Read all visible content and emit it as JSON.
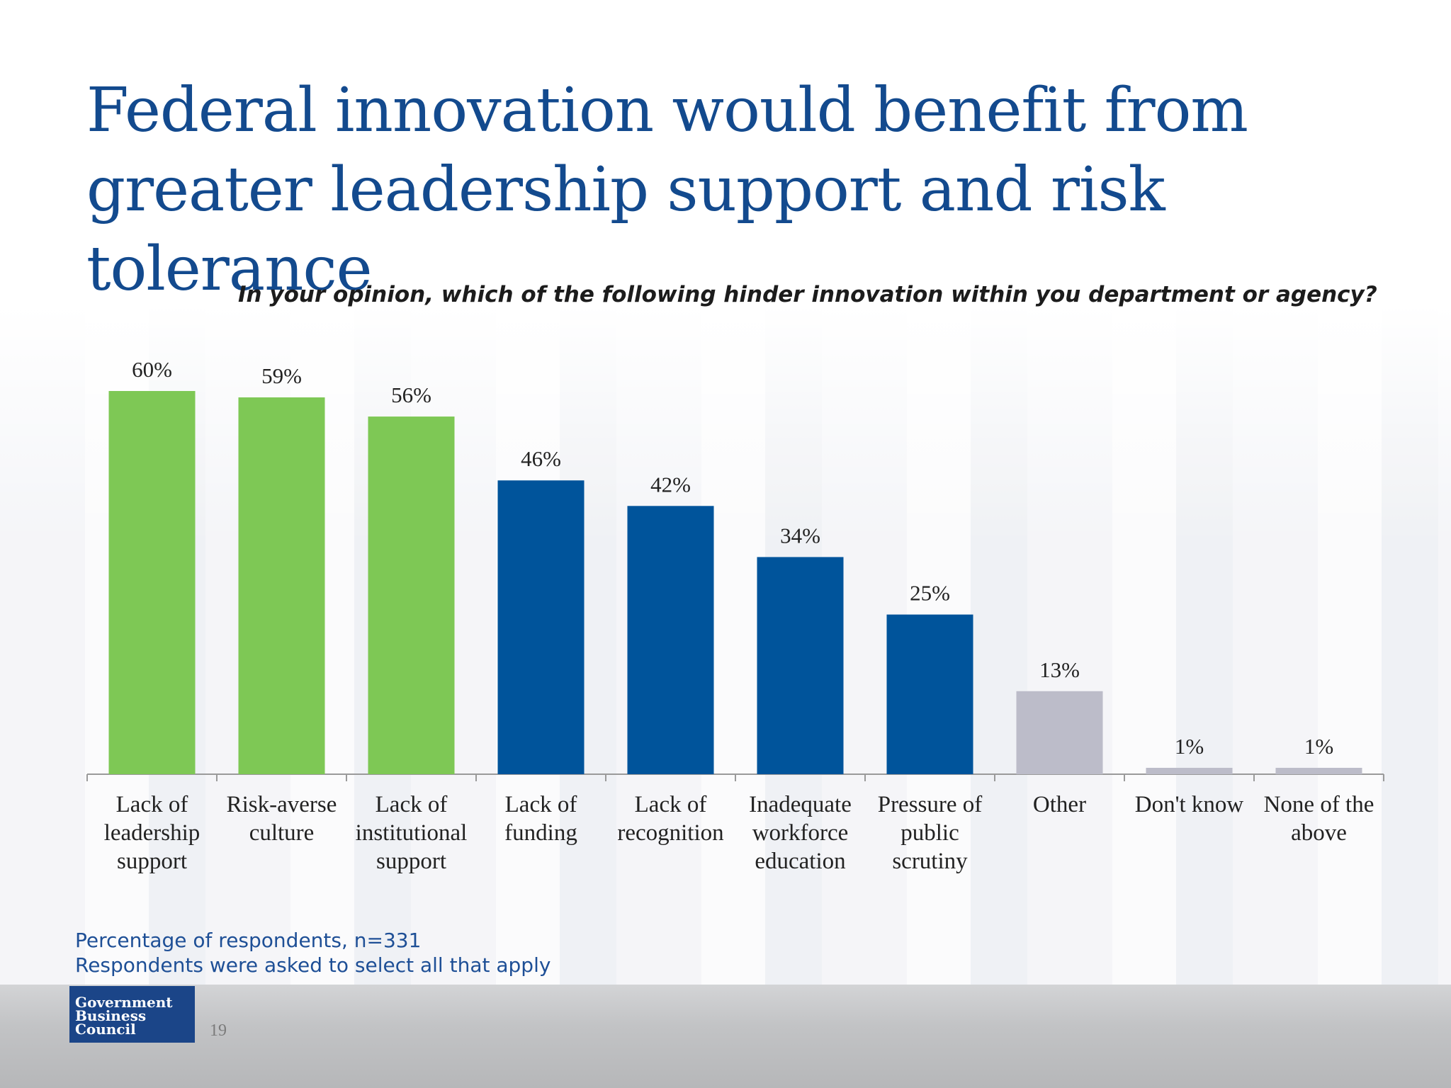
{
  "title_lines": [
    "Federal innovation would benefit from",
    "greater leadership support and risk tolerance"
  ],
  "subtitle": "In your opinion, which of the following hinder innovation within you department or agency?",
  "chart_data": {
    "type": "bar",
    "categories": [
      [
        "Lack of",
        "leadership",
        "support"
      ],
      [
        "Risk-averse",
        "culture"
      ],
      [
        "Lack of",
        "institutional",
        "support"
      ],
      [
        "Lack of",
        "funding"
      ],
      [
        "Lack of",
        "recognition"
      ],
      [
        "Inadequate",
        "workforce",
        "education"
      ],
      [
        "Pressure of",
        "public",
        "scrutiny"
      ],
      [
        "Other"
      ],
      [
        "Don't know"
      ],
      [
        "None of the",
        "above"
      ]
    ],
    "values": [
      60,
      59,
      56,
      46,
      42,
      34,
      25,
      13,
      1,
      1
    ],
    "data_labels": [
      "60%",
      "59%",
      "56%",
      "46%",
      "42%",
      "34%",
      "25%",
      "13%",
      "1%",
      "1%"
    ],
    "ylim": [
      0,
      60
    ],
    "grid": false,
    "colors": [
      "#7ec855",
      "#7ec855",
      "#7ec855",
      "#00549b",
      "#00549b",
      "#00549b",
      "#00549b",
      "#bcbcc9",
      "#bcbcc9",
      "#bcbcc9"
    ],
    "axis_color": "#9a9a9a"
  },
  "notes": [
    "Percentage of respondents, n=331",
    "Respondents were asked to select all that apply"
  ],
  "logo_lines": [
    "Government",
    "Business",
    "Council"
  ],
  "page_number": "19"
}
